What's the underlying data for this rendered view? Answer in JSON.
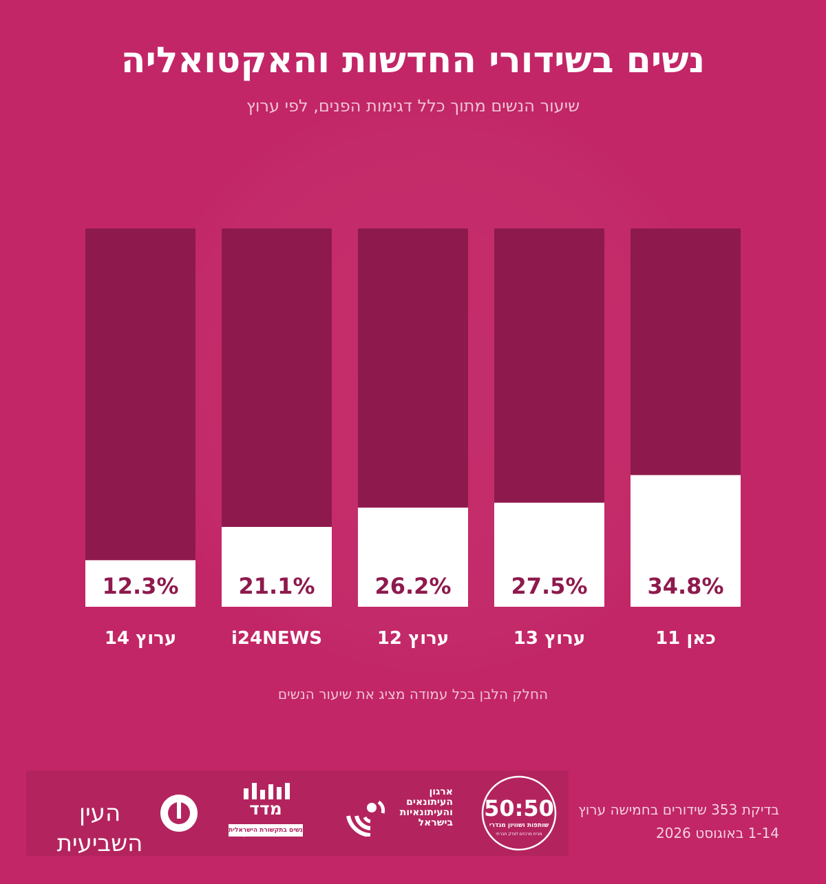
{
  "title": "נשים בשידורי החדשות והאקטואליה",
  "subtitle": "שיעור הנשים מתוך כלל דגימות הפנים, לפי ערוץ",
  "note": "החלק הלבן בכל עמודה מציג את שיעור הנשים",
  "credit": {
    "line1": "בדיקת 353 שידורים בחמישה ערוץ",
    "line2": "1-14 באוגוסט 2026"
  },
  "logos": {
    "fifty_fifty": {
      "mark": "50:50",
      "name": "שותפות ושוויון מגדרי",
      "tagline": "מבית מרכזים לצדק חברתי"
    },
    "journalists": {
      "line1": "ארגון",
      "line2": "העיתונאים",
      "line3": "והעיתונאיות",
      "line4": "בישראל"
    },
    "representation_index": {
      "name": "מדד הייצוג",
      "tagline": "נשים בתקשורת הישראלית"
    },
    "seventh_eye": {
      "name": "העין השביעית"
    }
  },
  "colors": {
    "background": "#C22666",
    "bar_remainder": "#8E1A4D",
    "bar_women": "#FFFFFF",
    "value_label": "#8E1A4D",
    "channel_label": "#FFFFFF"
  },
  "chart_data": {
    "type": "bar",
    "stacked_percent": true,
    "categories": [
      "ערוץ 14",
      "i24NEWS",
      "ערוץ 12",
      "ערוץ 13",
      "כאן 11"
    ],
    "series": [
      {
        "values": [
          12.3,
          21.1,
          26.2,
          27.5,
          34.8
        ]
      }
    ],
    "data_labels": [
      "12.3%",
      "21.1%",
      "26.2%",
      "27.5%",
      "34.8%"
    ],
    "ylim": [
      0,
      100
    ],
    "grid": false,
    "legend": "none"
  }
}
